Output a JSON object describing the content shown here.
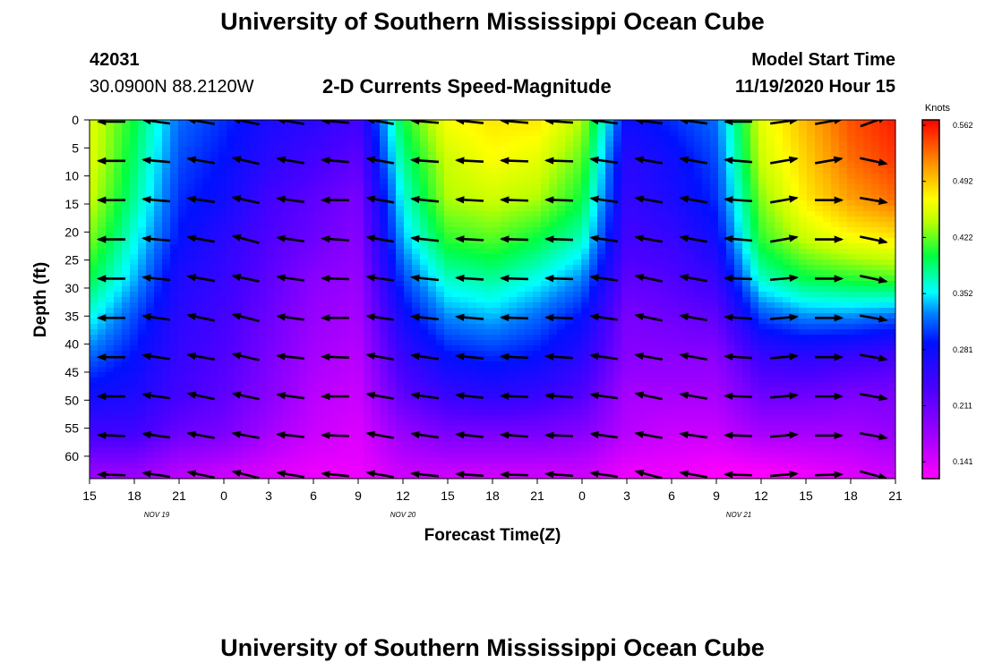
{
  "header": {
    "title": "University of Southern Mississippi Ocean Cube",
    "station_id": "42031",
    "station_coords": "30.0900N 88.2120W",
    "plot_title": "2-D Currents Speed-Magnitude",
    "model_start_label": "Model Start Time",
    "model_start_value": "11/19/2020 Hour 15"
  },
  "footer": {
    "title": "University of Southern Mississippi Ocean Cube"
  },
  "chart_data": {
    "type": "heatmap",
    "title": "2-D Currents Speed-Magnitude",
    "xlabel": "Forecast Time(Z)",
    "ylabel": "Depth (ft)",
    "x_tick_labels": [
      "15",
      "18",
      "21",
      "0",
      "3",
      "6",
      "9",
      "12",
      "15",
      "18",
      "21",
      "0",
      "3",
      "6",
      "9",
      "12",
      "15",
      "18",
      "21"
    ],
    "x_hours": [
      0,
      3,
      6,
      9,
      12,
      15,
      18,
      21,
      24,
      27,
      30,
      33,
      36,
      39,
      42,
      45,
      48,
      51,
      54
    ],
    "date_labels": [
      {
        "text": "NOV 19",
        "hour": 4.5
      },
      {
        "text": "NOV 20",
        "hour": 21
      },
      {
        "text": "NOV 21",
        "hour": 43.5
      }
    ],
    "y_ticks": [
      0,
      5,
      10,
      15,
      20,
      25,
      30,
      35,
      40,
      45,
      50,
      55,
      60
    ],
    "ylim": [
      0,
      64
    ],
    "colorbar": {
      "unit": "Knots",
      "ticks": [
        "0.562",
        "0.492",
        "0.422",
        "0.352",
        "0.281",
        "0.211",
        "0.141"
      ],
      "range": [
        0.12,
        0.57
      ]
    },
    "depths": [
      0,
      7,
      14,
      21,
      28,
      35,
      42,
      49,
      56,
      63
    ],
    "times": [
      0,
      3,
      6,
      9,
      12,
      15,
      18,
      21,
      24,
      27,
      30,
      33,
      36,
      39,
      42,
      45,
      48,
      51,
      54
    ],
    "speed": [
      [
        0.46,
        0.4,
        0.32,
        0.3,
        0.27,
        0.26,
        0.24,
        0.4,
        0.47,
        0.48,
        0.48,
        0.44,
        0.28,
        0.3,
        0.32,
        0.46,
        0.5,
        0.54,
        0.56
      ],
      [
        0.46,
        0.39,
        0.31,
        0.29,
        0.26,
        0.24,
        0.22,
        0.38,
        0.45,
        0.47,
        0.46,
        0.42,
        0.26,
        0.28,
        0.31,
        0.45,
        0.49,
        0.53,
        0.55
      ],
      [
        0.45,
        0.38,
        0.3,
        0.28,
        0.24,
        0.22,
        0.2,
        0.36,
        0.44,
        0.45,
        0.44,
        0.4,
        0.25,
        0.27,
        0.3,
        0.43,
        0.48,
        0.51,
        0.53
      ],
      [
        0.43,
        0.36,
        0.29,
        0.26,
        0.23,
        0.21,
        0.19,
        0.34,
        0.41,
        0.42,
        0.4,
        0.37,
        0.24,
        0.25,
        0.28,
        0.41,
        0.45,
        0.47,
        0.48
      ],
      [
        0.4,
        0.34,
        0.27,
        0.25,
        0.22,
        0.19,
        0.18,
        0.31,
        0.37,
        0.38,
        0.36,
        0.33,
        0.22,
        0.23,
        0.25,
        0.37,
        0.4,
        0.41,
        0.42
      ],
      [
        0.36,
        0.31,
        0.26,
        0.24,
        0.21,
        0.18,
        0.17,
        0.28,
        0.33,
        0.34,
        0.32,
        0.29,
        0.2,
        0.21,
        0.22,
        0.31,
        0.33,
        0.33,
        0.32
      ],
      [
        0.32,
        0.29,
        0.25,
        0.23,
        0.2,
        0.17,
        0.16,
        0.25,
        0.29,
        0.3,
        0.29,
        0.26,
        0.19,
        0.19,
        0.19,
        0.25,
        0.26,
        0.25,
        0.24
      ],
      [
        0.28,
        0.27,
        0.24,
        0.22,
        0.19,
        0.16,
        0.15,
        0.22,
        0.25,
        0.26,
        0.25,
        0.23,
        0.17,
        0.17,
        0.17,
        0.21,
        0.21,
        0.2,
        0.2
      ],
      [
        0.24,
        0.24,
        0.21,
        0.2,
        0.17,
        0.15,
        0.14,
        0.18,
        0.2,
        0.2,
        0.2,
        0.19,
        0.16,
        0.15,
        0.15,
        0.17,
        0.17,
        0.17,
        0.18
      ],
      [
        0.18,
        0.18,
        0.16,
        0.15,
        0.14,
        0.13,
        0.13,
        0.15,
        0.15,
        0.15,
        0.15,
        0.15,
        0.13,
        0.13,
        0.12,
        0.12,
        0.13,
        0.14,
        0.15
      ]
    ],
    "arrow_times": [
      1.5,
      4.5,
      7.5,
      10.5,
      13.5,
      16.5,
      19.5,
      22.5,
      25.5,
      28.5,
      31.5,
      34.5,
      37.5,
      40.5,
      43.5,
      46.5,
      49.5,
      52.5
    ],
    "arrow_depths": [
      0,
      7,
      14,
      21,
      28,
      35,
      42,
      49,
      56,
      63
    ],
    "arrow_direction_deg": [
      [
        180,
        172,
        170,
        168,
        170,
        175,
        170,
        175,
        174,
        175,
        176,
        172,
        172,
        172,
        180,
        8,
        10,
        20
      ],
      [
        180,
        175,
        170,
        167,
        170,
        175,
        170,
        176,
        177,
        178,
        178,
        172,
        170,
        170,
        175,
        10,
        10,
        -12
      ],
      [
        180,
        175,
        172,
        168,
        172,
        180,
        170,
        174,
        177,
        178,
        178,
        172,
        170,
        170,
        176,
        10,
        0,
        -10
      ],
      [
        180,
        175,
        170,
        165,
        172,
        176,
        170,
        174,
        177,
        178,
        178,
        172,
        170,
        170,
        175,
        10,
        0,
        -12
      ],
      [
        180,
        174,
        170,
        168,
        172,
        178,
        172,
        174,
        176,
        178,
        178,
        172,
        168,
        170,
        178,
        5,
        0,
        -12
      ],
      [
        180,
        172,
        168,
        166,
        172,
        180,
        172,
        174,
        175,
        178,
        178,
        172,
        168,
        170,
        176,
        5,
        0,
        -10
      ],
      [
        180,
        172,
        170,
        167,
        174,
        178,
        170,
        172,
        174,
        177,
        176,
        172,
        170,
        170,
        176,
        5,
        0,
        -10
      ],
      [
        180,
        172,
        168,
        168,
        172,
        180,
        170,
        172,
        174,
        178,
        176,
        172,
        168,
        170,
        178,
        5,
        0,
        -10
      ],
      [
        178,
        172,
        170,
        170,
        174,
        178,
        170,
        172,
        174,
        176,
        178,
        172,
        170,
        172,
        178,
        5,
        0,
        -10
      ],
      [
        178,
        172,
        168,
        166,
        170,
        174,
        170,
        174,
        176,
        178,
        176,
        172,
        165,
        170,
        178,
        5,
        2,
        -15
      ]
    ]
  }
}
